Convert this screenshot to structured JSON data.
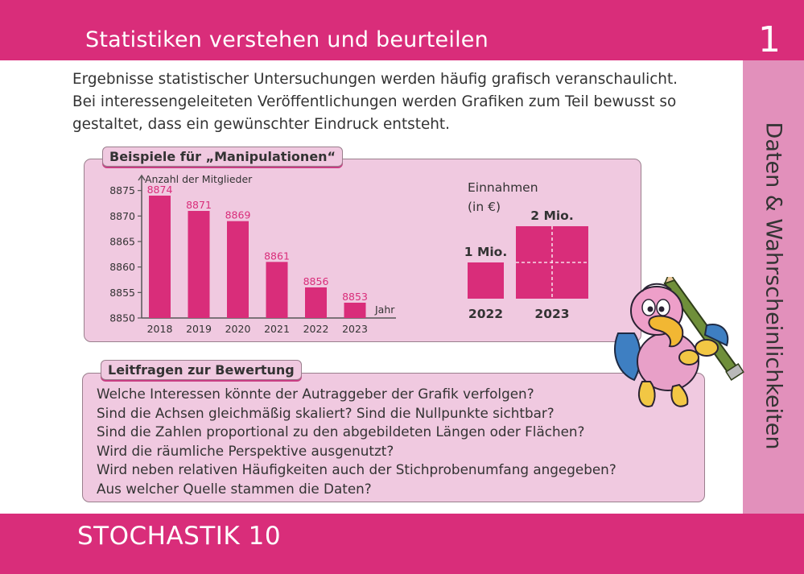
{
  "header": {
    "title": "Statistiken verstehen und beurteilen",
    "card_number": "1"
  },
  "side_band": {
    "label": "Daten & Wahrscheinlichkeiten"
  },
  "intro": {
    "lines": [
      "Ergebnisse statistischer Untersuchungen werden häufig grafisch veranschaulicht.",
      "Bei interessengeleiteten Veröffentlichungen werden Grafiken zum Teil bewusst so",
      "gestaltet, dass ein gewünschter Eindruck entsteht."
    ]
  },
  "examples": {
    "tab_label": "Beispiele für „Manipulationen“"
  },
  "questions": {
    "tab_label": "Leitfragen zur Bewertung",
    "items": [
      "Welche Interessen könnte der Autraggeber der Grafik verfolgen?",
      "Sind die Achsen gleichmäßig skaliert? Sind die Nullpunkte sichtbar?",
      "Sind die Zahlen proportional zu den abgebildeten Längen oder Flächen?",
      "Wird die räumliche Perspektive ausgenutzt?",
      "Wird neben relativen Häufigkeiten auch der Stichprobenumfang angegeben?",
      "Aus welcher Quelle stammen die Daten?"
    ]
  },
  "footer": {
    "title": "STOCHASTIK 10"
  },
  "colors": {
    "magenta": "#d92d7a",
    "panel": "#f0c9e0",
    "side": "#e290bb",
    "text": "#333333"
  },
  "chart_data": [
    {
      "type": "bar",
      "title": "",
      "ylabel": "Anzahl der Mitglieder",
      "xlabel": "Jahr",
      "categories": [
        "2018",
        "2019",
        "2020",
        "2021",
        "2022",
        "2023"
      ],
      "values": [
        8874,
        8871,
        8869,
        8861,
        8856,
        8853
      ],
      "ylim": [
        8850,
        8877
      ],
      "yticks": [
        8850,
        8855,
        8860,
        8865,
        8870,
        8875
      ],
      "grid": false
    },
    {
      "type": "bar",
      "title": "Einnahmen",
      "unit_label": "(in €)",
      "categories": [
        "2022",
        "2023"
      ],
      "values": [
        1,
        2
      ],
      "value_labels": [
        "1 Mio.",
        "2 Mio."
      ],
      "note": "2023 shown as a square with doubled side length (area ×4)"
    }
  ]
}
